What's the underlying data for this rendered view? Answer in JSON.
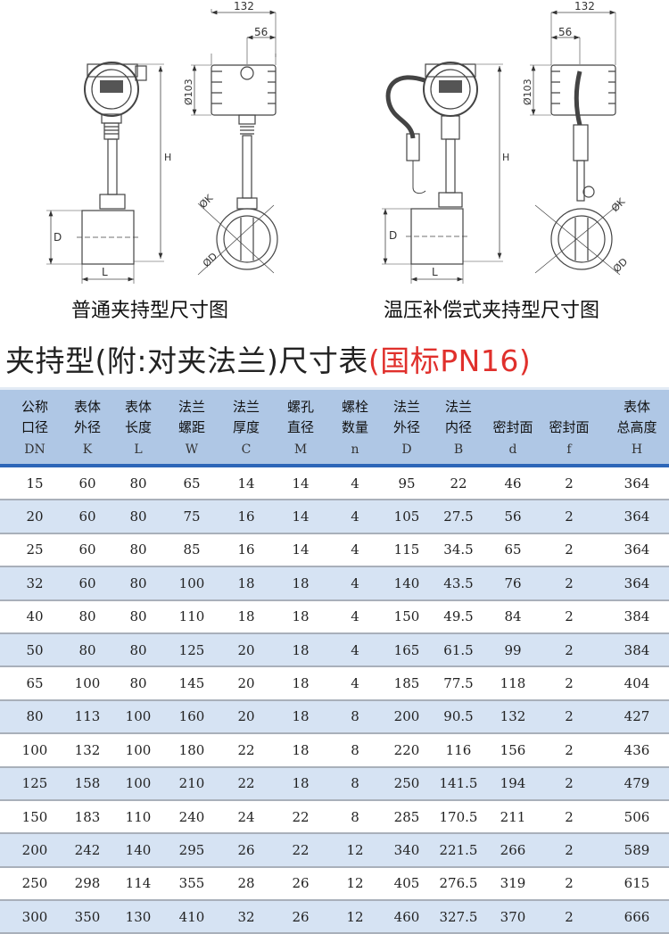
{
  "drawings": {
    "left": {
      "caption": "普通夹持型尺寸图",
      "dims": {
        "width": "132",
        "offset": "56",
        "housing_dia": "Ø103",
        "height": "H",
        "pipe_d": "D",
        "length": "L",
        "k": "ØK",
        "d": "ØD"
      }
    },
    "right": {
      "caption": "温压补偿式夹持型尺寸图",
      "dims": {
        "width": "132",
        "offset": "56",
        "housing_dia": "Ø103",
        "height": "H",
        "pipe_d": "D",
        "length": "L",
        "k": "ØK",
        "d": "ØD"
      }
    }
  },
  "title": {
    "main": "夹持型(附:对夹法兰)尺寸表",
    "standard": "(国标PN16)",
    "standard_color": "#e0302c"
  },
  "table": {
    "header_color": "#afc7e5",
    "stripe_color": "#d6e3f3",
    "columns": [
      {
        "line1": "公称",
        "line2": "口径",
        "symbol": "DN"
      },
      {
        "line1": "表体",
        "line2": "外径",
        "symbol": "K"
      },
      {
        "line1": "表体",
        "line2": "长度",
        "symbol": "L"
      },
      {
        "line1": "法兰",
        "line2": "螺距",
        "symbol": "W"
      },
      {
        "line1": "法兰",
        "line2": "厚度",
        "symbol": "C"
      },
      {
        "line1": "螺孔",
        "line2": "直径",
        "symbol": "M"
      },
      {
        "line1": "螺栓",
        "line2": "数量",
        "symbol": "n"
      },
      {
        "line1": "法兰",
        "line2": "外径",
        "symbol": "D"
      },
      {
        "line1": "法兰",
        "line2": "内径",
        "symbol": "B"
      },
      {
        "line1": "",
        "line2": "密封面",
        "symbol": "d"
      },
      {
        "line1": "",
        "line2": "密封面",
        "symbol": "f"
      },
      {
        "line1": "表体",
        "line2": "总高度",
        "symbol": "H"
      }
    ],
    "rows": [
      [
        "15",
        "60",
        "80",
        "65",
        "14",
        "14",
        "4",
        "95",
        "22",
        "46",
        "2",
        "364"
      ],
      [
        "20",
        "60",
        "80",
        "75",
        "16",
        "14",
        "4",
        "105",
        "27.5",
        "56",
        "2",
        "364"
      ],
      [
        "25",
        "60",
        "80",
        "85",
        "16",
        "14",
        "4",
        "115",
        "34.5",
        "65",
        "2",
        "364"
      ],
      [
        "32",
        "60",
        "80",
        "100",
        "18",
        "18",
        "4",
        "140",
        "43.5",
        "76",
        "2",
        "364"
      ],
      [
        "40",
        "80",
        "80",
        "110",
        "18",
        "18",
        "4",
        "150",
        "49.5",
        "84",
        "2",
        "384"
      ],
      [
        "50",
        "80",
        "80",
        "125",
        "20",
        "18",
        "4",
        "165",
        "61.5",
        "99",
        "2",
        "384"
      ],
      [
        "65",
        "100",
        "80",
        "145",
        "20",
        "18",
        "4",
        "185",
        "77.5",
        "118",
        "2",
        "404"
      ],
      [
        "80",
        "113",
        "100",
        "160",
        "20",
        "18",
        "8",
        "200",
        "90.5",
        "132",
        "2",
        "427"
      ],
      [
        "100",
        "132",
        "100",
        "180",
        "22",
        "18",
        "8",
        "220",
        "116",
        "156",
        "2",
        "436"
      ],
      [
        "125",
        "158",
        "100",
        "210",
        "22",
        "18",
        "8",
        "250",
        "141.5",
        "194",
        "2",
        "479"
      ],
      [
        "150",
        "183",
        "110",
        "240",
        "24",
        "22",
        "8",
        "285",
        "170.5",
        "211",
        "2",
        "506"
      ],
      [
        "200",
        "242",
        "140",
        "295",
        "26",
        "22",
        "12",
        "340",
        "221.5",
        "266",
        "2",
        "589"
      ],
      [
        "250",
        "298",
        "114",
        "355",
        "28",
        "26",
        "12",
        "405",
        "276.5",
        "319",
        "2",
        "615"
      ],
      [
        "300",
        "350",
        "130",
        "410",
        "32",
        "26",
        "12",
        "460",
        "327.5",
        "370",
        "2",
        "666"
      ]
    ]
  }
}
